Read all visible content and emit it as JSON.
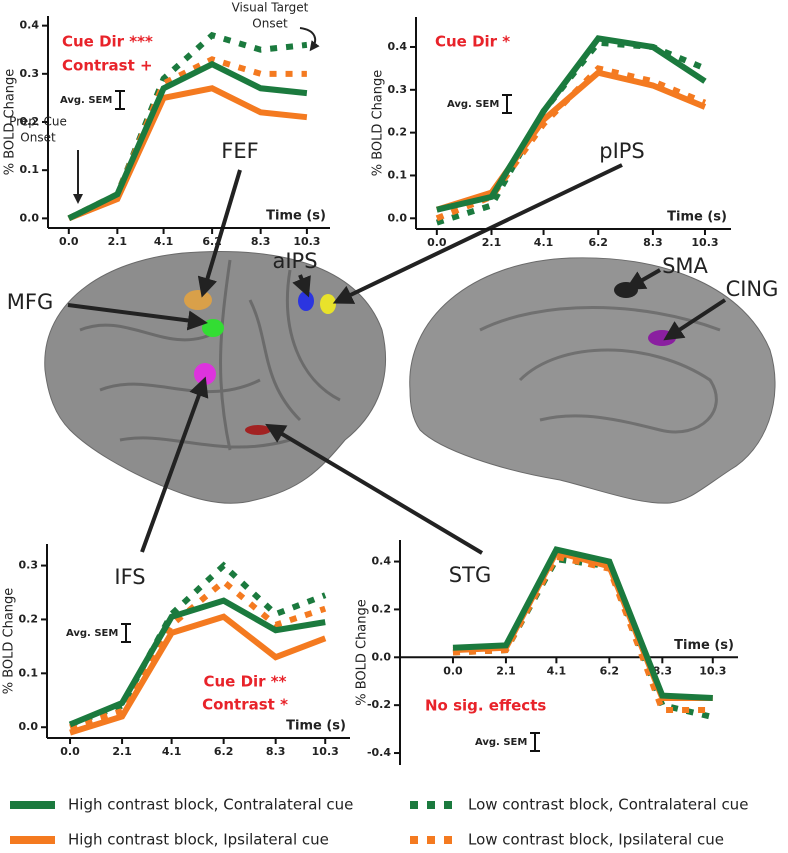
{
  "chart_data": [
    {
      "type": "line",
      "ylabel": "% BOLD Change",
      "xlabel": "Time (s)",
      "sem_label": "Avg. SEM",
      "annotations": [
        "Cue Dir ***",
        "Contrast +",
        "Visual Target",
        "Onset",
        "Prep. Cue",
        "Onset"
      ],
      "x": [
        0,
        2.1,
        4.1,
        6.2,
        8.3,
        10.3
      ],
      "xlim": [
        -0.9,
        11.3
      ],
      "xticks": [
        {
          "value": 0,
          "label": "0.0"
        },
        2.1,
        4.1,
        6.2,
        8.3,
        10.3
      ],
      "ylim": [
        -0.02,
        0.42
      ],
      "yticks": [
        {
          "value": 0,
          "label": "0.0"
        },
        0.1,
        0.2,
        0.3,
        0.4
      ],
      "series": [
        {
          "color": "#1b7a3e",
          "dashed": true,
          "values": [
            0.0,
            0.05,
            0.29,
            0.38,
            0.35,
            0.36
          ]
        },
        {
          "color": "#f47a20",
          "dashed": true,
          "values": [
            0.0,
            0.05,
            0.28,
            0.33,
            0.3,
            0.3
          ]
        },
        {
          "color": "#f47a20",
          "dashed": false,
          "values": [
            0.0,
            0.04,
            0.25,
            0.27,
            0.22,
            0.21
          ]
        },
        {
          "color": "#1b7a3e",
          "dashed": false,
          "values": [
            0.0,
            0.05,
            0.27,
            0.32,
            0.27,
            0.26
          ]
        }
      ]
    },
    {
      "type": "line",
      "ylabel": "% BOLD Change",
      "xlabel": "Time (s)",
      "sem_label": "Avg. SEM",
      "annotations": [
        "Cue Dir *"
      ],
      "x": [
        0,
        2.1,
        4.1,
        6.2,
        8.3,
        10.3
      ],
      "xlim": [
        -0.8,
        11.3
      ],
      "xticks": [
        {
          "value": 0,
          "label": "0.0"
        },
        2.1,
        4.1,
        6.2,
        8.3,
        10.3
      ],
      "ylim": [
        -0.025,
        0.47
      ],
      "yticks": [
        {
          "value": 0,
          "label": "0.0"
        },
        0.1,
        0.2,
        0.3,
        0.4
      ],
      "series": [
        {
          "color": "#1b7a3e",
          "dashed": true,
          "values": [
            -0.01,
            0.03,
            0.25,
            0.41,
            0.4,
            0.35
          ]
        },
        {
          "color": "#f47a20",
          "dashed": true,
          "values": [
            0.0,
            0.05,
            0.22,
            0.35,
            0.32,
            0.27
          ]
        },
        {
          "color": "#f47a20",
          "dashed": false,
          "values": [
            0.02,
            0.06,
            0.23,
            0.34,
            0.31,
            0.26
          ]
        },
        {
          "color": "#1b7a3e",
          "dashed": false,
          "values": [
            0.02,
            0.05,
            0.25,
            0.42,
            0.4,
            0.32
          ]
        }
      ]
    },
    {
      "type": "line",
      "ylabel": "% BOLD Change",
      "xlabel": "Time (s)",
      "sem_label": "Avg. SEM",
      "annotations": [
        "Cue Dir **",
        "Contrast *"
      ],
      "x": [
        0,
        2.1,
        4.1,
        6.2,
        8.3,
        10.3
      ],
      "xlim": [
        -0.93,
        11.3
      ],
      "xticks": [
        {
          "value": 0,
          "label": "0.0"
        },
        2.1,
        4.1,
        6.2,
        8.3,
        10.3
      ],
      "ylim": [
        -0.02,
        0.34
      ],
      "yticks": [
        {
          "value": 0,
          "label": "0.0"
        },
        0.1,
        0.2,
        0.3
      ],
      "series": [
        {
          "color": "#1b7a3e",
          "dashed": true,
          "values": [
            0.005,
            0.04,
            0.21,
            0.3,
            0.21,
            0.245
          ]
        },
        {
          "color": "#f47a20",
          "dashed": true,
          "values": [
            0.0,
            0.03,
            0.19,
            0.27,
            0.19,
            0.22
          ]
        },
        {
          "color": "#f47a20",
          "dashed": false,
          "values": [
            -0.01,
            0.02,
            0.175,
            0.205,
            0.13,
            0.165
          ]
        },
        {
          "color": "#1b7a3e",
          "dashed": false,
          "values": [
            0.005,
            0.045,
            0.205,
            0.235,
            0.18,
            0.195
          ]
        }
      ]
    },
    {
      "type": "line",
      "ylabel": "% BOLD Change",
      "xlabel": "Time (s)",
      "sem_label": "Avg. SEM",
      "annotations": [
        "No sig. effects"
      ],
      "xaxis_at_zero": true,
      "x": [
        0,
        2.1,
        4.1,
        6.2,
        8.3,
        10.3
      ],
      "xlim": [
        -2.1,
        11.3
      ],
      "xticks": [
        {
          "value": 0,
          "label": "0.0"
        },
        2.1,
        4.1,
        6.2,
        8.3,
        10.3
      ],
      "ylim": [
        -0.45,
        0.49
      ],
      "yticks": [
        -0.4,
        -0.2,
        {
          "value": 0,
          "label": "0.0"
        },
        0.2,
        0.4
      ],
      "series": [
        {
          "color": "#1b7a3e",
          "dashed": true,
          "values": [
            0.02,
            0.03,
            0.41,
            0.38,
            -0.2,
            -0.25
          ]
        },
        {
          "color": "#f47a20",
          "dashed": true,
          "values": [
            0.02,
            0.03,
            0.42,
            0.37,
            -0.22,
            -0.22
          ]
        },
        {
          "color": "#f47a20",
          "dashed": false,
          "values": [
            0.03,
            0.04,
            0.44,
            0.38,
            -0.17,
            -0.17
          ]
        },
        {
          "color": "#1b7a3e",
          "dashed": false,
          "values": [
            0.04,
            0.05,
            0.45,
            0.4,
            -0.16,
            -0.17
          ]
        }
      ]
    }
  ],
  "regions": [
    "FEF",
    "MFG",
    "aIPS",
    "pIPS",
    "SMA",
    "CING",
    "IFS",
    "STG"
  ],
  "legend": [
    {
      "label": "High contrast block, Contralateral cue",
      "color": "#1b7a3e",
      "dashed": false
    },
    {
      "label": "Low contrast block, Contralateral cue",
      "color": "#1b7a3e",
      "dashed": true
    },
    {
      "label": "High contrast block, Ipsilateral cue",
      "color": "#f47a20",
      "dashed": false
    },
    {
      "label": "Low contrast block, Ipsilateral cue",
      "color": "#f47a20",
      "dashed": true
    }
  ]
}
